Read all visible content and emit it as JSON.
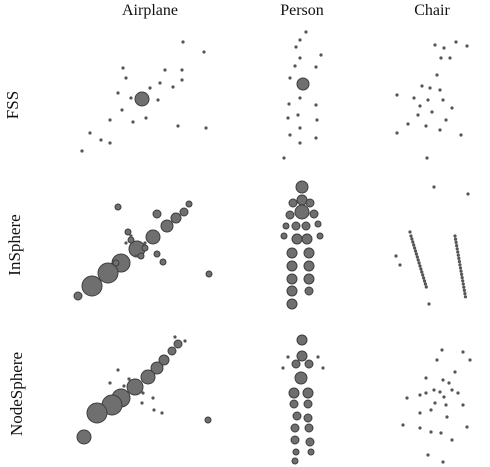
{
  "columns": [
    "Airplane",
    "Person",
    "Chair"
  ],
  "rows": [
    "FSS",
    "InSphere",
    "NodeSphere"
  ]
}
